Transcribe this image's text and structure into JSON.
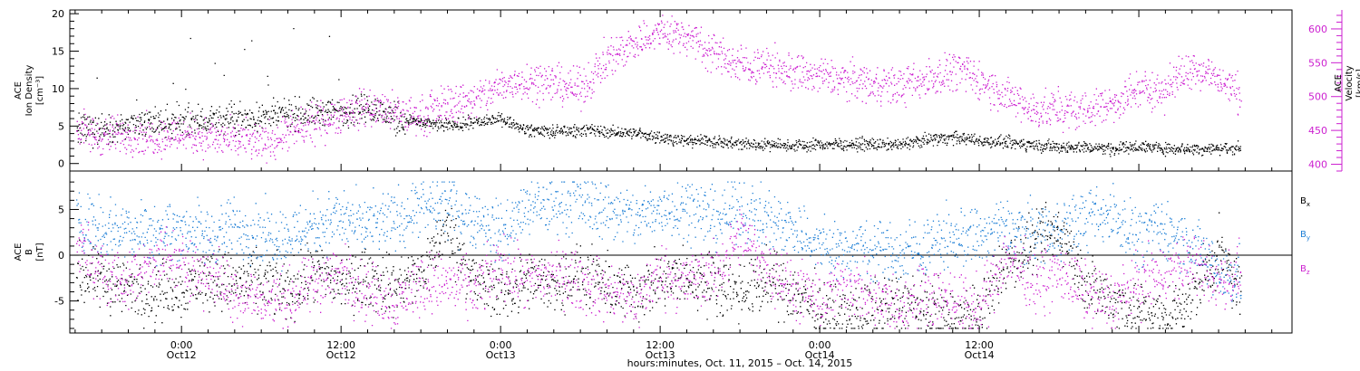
{
  "colors": {
    "black": "#000000",
    "magenta": "#cc1fd0",
    "blue": "#1e7fd6"
  },
  "chart_data": [
    {
      "type": "scatter",
      "panel": "top",
      "ylabel_lines": [
        "ACE",
        "Ion Density",
        "[cm⁻³]"
      ],
      "y2label_lines": [
        "ACE",
        "Velocity",
        "[km/s]"
      ],
      "xlim": [
        -0.35,
        3.48
      ],
      "ylim": [
        -1,
        20.5
      ],
      "yticks": [
        0,
        5,
        10,
        15,
        20
      ],
      "y2lim": [
        390,
        628
      ],
      "y2ticks": [
        400,
        450,
        500,
        550,
        600
      ],
      "series": [
        {
          "color": "black",
          "axis": "left",
          "x": [
            -0.33,
            -0.25,
            -0.17,
            -0.08,
            0.0,
            0.08,
            0.17,
            0.25,
            0.33,
            0.42,
            0.5,
            0.58,
            0.67,
            0.75,
            0.83,
            0.92,
            1.0,
            1.08,
            1.17,
            1.25,
            1.33,
            1.42,
            1.5,
            1.58,
            1.67,
            1.75,
            1.83,
            1.92,
            2.0,
            2.08,
            2.17,
            2.25,
            2.33,
            2.42,
            2.5,
            2.58,
            2.67,
            2.75,
            2.83,
            2.92,
            3.0,
            3.08,
            3.17,
            3.25,
            3.32
          ],
          "y": [
            4.5,
            4.8,
            5.0,
            5.5,
            5.5,
            5.8,
            6.0,
            6.2,
            6.5,
            6.8,
            7.0,
            7.5,
            6.0,
            5.5,
            5.0,
            5.5,
            6.0,
            4.5,
            4.2,
            4.5,
            4.2,
            4.0,
            3.5,
            3.0,
            3.0,
            2.6,
            2.5,
            2.4,
            2.5,
            2.6,
            2.5,
            2.5,
            3.2,
            3.5,
            3.0,
            2.8,
            2.5,
            2.2,
            2.2,
            2.0,
            2.3,
            2.0,
            2.0,
            2.0,
            2.1
          ]
        },
        {
          "color": "magenta",
          "axis": "right",
          "x": [
            -0.33,
            -0.25,
            -0.17,
            -0.08,
            0.0,
            0.08,
            0.17,
            0.25,
            0.33,
            0.42,
            0.5,
            0.58,
            0.67,
            0.75,
            0.83,
            0.92,
            1.0,
            1.08,
            1.17,
            1.25,
            1.33,
            1.42,
            1.5,
            1.58,
            1.67,
            1.75,
            1.83,
            1.92,
            2.0,
            2.08,
            2.17,
            2.25,
            2.33,
            2.42,
            2.5,
            2.58,
            2.67,
            2.75,
            2.83,
            2.92,
            3.0,
            3.08,
            3.17,
            3.25,
            3.32
          ],
          "y": [
            450,
            440,
            445,
            440,
            445,
            440,
            435,
            430,
            445,
            460,
            475,
            485,
            475,
            470,
            490,
            495,
            515,
            525,
            520,
            510,
            555,
            580,
            595,
            590,
            565,
            545,
            545,
            535,
            530,
            525,
            520,
            515,
            525,
            540,
            525,
            500,
            480,
            480,
            480,
            490,
            510,
            510,
            545,
            525,
            500
          ]
        }
      ]
    },
    {
      "type": "scatter",
      "panel": "bottom",
      "ylabel_lines": [
        "ACE",
        "B",
        "[nT]"
      ],
      "xlim": [
        -0.35,
        3.48
      ],
      "ylim": [
        -8.5,
        9.2
      ],
      "yticks": [
        -5,
        0,
        5
      ],
      "legend": [
        "Bx",
        "By",
        "Bz"
      ],
      "legend_placement": "right",
      "series": [
        {
          "name": "Bx",
          "color": "black",
          "x": [
            -0.33,
            -0.25,
            -0.17,
            -0.08,
            0.0,
            0.08,
            0.17,
            0.25,
            0.33,
            0.42,
            0.5,
            0.58,
            0.67,
            0.75,
            0.83,
            0.92,
            1.0,
            1.08,
            1.17,
            1.25,
            1.33,
            1.42,
            1.5,
            1.58,
            1.67,
            1.75,
            1.83,
            1.92,
            2.0,
            2.08,
            2.17,
            2.25,
            2.33,
            2.42,
            2.5,
            2.58,
            2.67,
            2.75,
            2.83,
            2.92,
            3.0,
            3.08,
            3.17,
            3.25,
            3.32
          ],
          "y": [
            -2,
            -3,
            -3.5,
            -4,
            -3.5,
            -2.5,
            -3,
            -3,
            -4,
            -2,
            -3,
            -2.5,
            -3.5,
            -2,
            3,
            -3,
            -4,
            -3,
            -3,
            -2,
            -3.5,
            -4,
            -3,
            -2.5,
            -3,
            -4,
            -3,
            -4,
            -6,
            -6.5,
            -6,
            -5,
            -6,
            -7,
            -6.5,
            -1,
            1,
            3,
            -3,
            -5,
            -6,
            -7,
            -4,
            0,
            -4
          ]
        },
        {
          "name": "By",
          "color": "blue",
          "x": [
            -0.33,
            -0.25,
            -0.17,
            -0.08,
            0.0,
            0.08,
            0.17,
            0.25,
            0.33,
            0.42,
            0.5,
            0.58,
            0.67,
            0.75,
            0.83,
            0.92,
            1.0,
            1.08,
            1.17,
            1.25,
            1.33,
            1.42,
            1.5,
            1.58,
            1.67,
            1.75,
            1.83,
            1.92,
            2.0,
            2.08,
            2.17,
            2.25,
            2.33,
            2.42,
            2.5,
            2.58,
            2.67,
            2.75,
            2.83,
            2.92,
            3.0,
            3.08,
            3.17,
            3.25,
            3.32
          ],
          "y": [
            4,
            3,
            3,
            2.5,
            3,
            2,
            3,
            2.5,
            2,
            3.5,
            4,
            3,
            4,
            5,
            5.5,
            4,
            2.5,
            5,
            5.5,
            6,
            5,
            4,
            5,
            5.5,
            4,
            5,
            4,
            3,
            1,
            0.5,
            1,
            0,
            1,
            2,
            2,
            3,
            2.5,
            3,
            4,
            4.5,
            2,
            3,
            1,
            -2,
            -2.5
          ]
        },
        {
          "name": "Bz",
          "color": "magenta",
          "x": [
            -0.33,
            -0.25,
            -0.17,
            -0.08,
            0.0,
            0.08,
            0.17,
            0.25,
            0.33,
            0.42,
            0.5,
            0.58,
            0.67,
            0.75,
            0.83,
            0.92,
            1.0,
            1.08,
            1.17,
            1.25,
            1.33,
            1.42,
            1.5,
            1.58,
            1.67,
            1.75,
            1.83,
            1.92,
            2.0,
            2.08,
            2.17,
            2.25,
            2.33,
            2.42,
            2.5,
            2.58,
            2.67,
            2.75,
            2.83,
            2.92,
            3.0,
            3.08,
            3.17,
            3.25,
            3.32
          ],
          "y": [
            1,
            -2,
            -3,
            0,
            -1,
            -2,
            -4,
            -5,
            -5,
            -3,
            -2,
            -4,
            -5,
            -3,
            -3,
            -4,
            -1,
            -3,
            -2,
            -3,
            -4,
            -5,
            -2,
            -3,
            -2,
            2,
            -1,
            -4,
            -5,
            -3,
            -5,
            -6,
            -4,
            -5,
            -6,
            0,
            -3,
            -2,
            -4,
            -5,
            -3,
            -2,
            -1,
            -3,
            -2
          ]
        }
      ]
    }
  ],
  "x_axis": {
    "ticks": [
      {
        "time": "0:00",
        "date": "Oct12",
        "x": 0
      },
      {
        "time": "12:00",
        "date": "Oct12",
        "x": 0.5
      },
      {
        "time": "0:00",
        "date": "Oct13",
        "x": 1
      },
      {
        "time": "12:00",
        "date": "Oct13",
        "x": 1.5
      },
      {
        "time": "0:00",
        "date": "Oct14",
        "x": 2
      },
      {
        "time": "12:00",
        "date": "Oct14",
        "x": 2.5
      }
    ],
    "label": "hours:minutes, Oct. 11, 2015 – Oct. 14, 2015"
  }
}
